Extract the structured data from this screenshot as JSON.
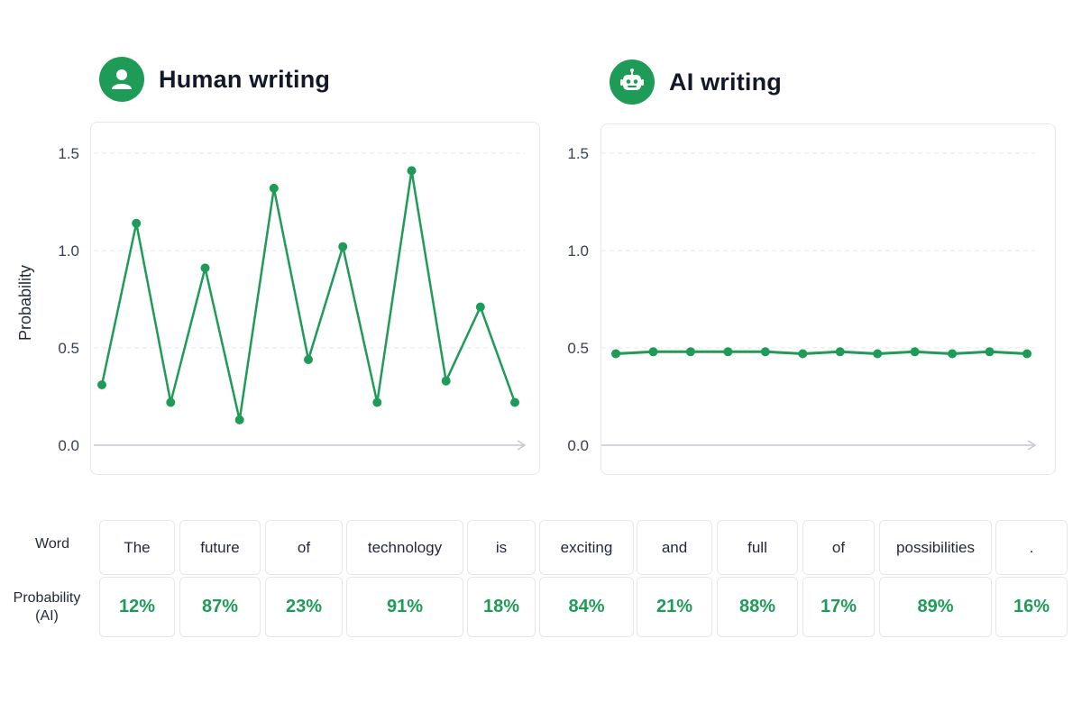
{
  "colors": {
    "accent": "#1e9b57",
    "grid": "#e5e7eb",
    "axis": "#c4c8cf"
  },
  "human_panel": {
    "title": "Human writing",
    "icon": "user-icon"
  },
  "ai_panel": {
    "title": "AI writing",
    "icon": "robot-icon"
  },
  "chart_data": [
    {
      "type": "line",
      "title": "Human writing",
      "ylabel": "Probability",
      "xlabel": "",
      "ylim": [
        0,
        1.5
      ],
      "yticks": [
        "0.0",
        "0.5",
        "1.0",
        "1.5"
      ],
      "grid": true,
      "series": [
        {
          "values": [
            0.31,
            1.14,
            0.22,
            0.91,
            0.13,
            1.32,
            0.44,
            1.02,
            0.22,
            1.41,
            0.33,
            0.71,
            0.22
          ]
        }
      ]
    },
    {
      "type": "line",
      "title": "AI writing",
      "ylabel": "",
      "xlabel": "",
      "ylim": [
        0,
        1.5
      ],
      "yticks": [
        "0.0",
        "0.5",
        "1.0",
        "1.5"
      ],
      "grid": true,
      "series": [
        {
          "values": [
            0.47,
            0.48,
            0.48,
            0.48,
            0.48,
            0.47,
            0.48,
            0.47,
            0.48,
            0.47,
            0.48,
            0.47
          ]
        }
      ]
    }
  ],
  "table": {
    "word_label": "Word",
    "prob_label": "Probability\n(AI)",
    "words": [
      "The",
      "future",
      "of",
      "technology",
      "is",
      "exciting",
      "and",
      "full",
      "of",
      "possibilities",
      "."
    ],
    "probs": [
      "12%",
      "87%",
      "23%",
      "91%",
      "18%",
      "84%",
      "21%",
      "88%",
      "17%",
      "89%",
      "16%"
    ]
  }
}
